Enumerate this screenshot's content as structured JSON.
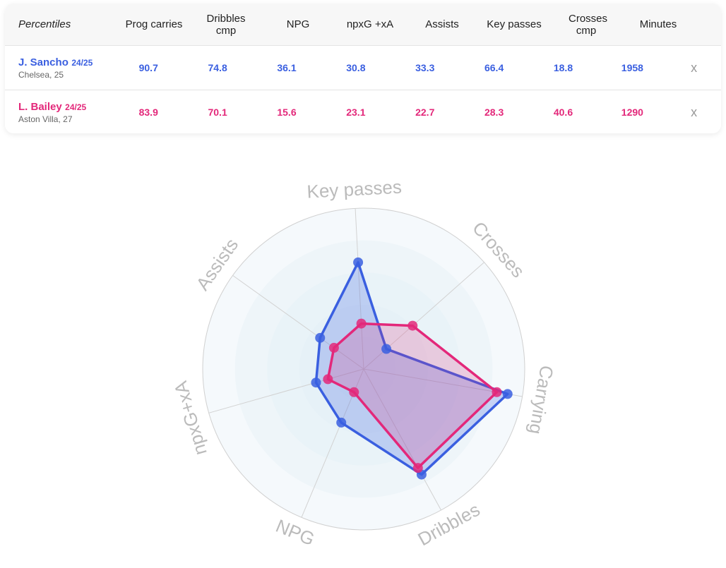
{
  "table": {
    "header_label": "Percentiles",
    "columns": [
      "Prog carries",
      "Dribbles cmp",
      "NPG",
      "npxG +xA",
      "Assists",
      "Key passes",
      "Crosses cmp",
      "Minutes"
    ],
    "remove_label": "x",
    "players": [
      {
        "name": "J. Sancho",
        "season": "24/25",
        "club": "Chelsea, 25",
        "values": [
          "90.7",
          "74.8",
          "36.1",
          "30.8",
          "33.3",
          "66.4",
          "18.8",
          "1958"
        ],
        "color": "#3a5fe0"
      },
      {
        "name": "L. Bailey",
        "season": "24/25",
        "club": "Aston Villa, 27",
        "values": [
          "83.9",
          "70.1",
          "15.6",
          "23.1",
          "22.7",
          "28.3",
          "40.6",
          "1290"
        ],
        "color": "#e3287a"
      }
    ]
  },
  "chart_data": {
    "type": "radar",
    "axes": [
      "Key passes",
      "Crosses",
      "Carrying",
      "Dribbles",
      "NPG",
      "npxG+xA",
      "Assists"
    ],
    "range": [
      0,
      100
    ],
    "series": [
      {
        "name": "J. Sancho",
        "color": "#3a5fe0",
        "values": [
          66.4,
          18.8,
          90.7,
          74.8,
          36.1,
          30.8,
          33.3
        ]
      },
      {
        "name": "L. Bailey",
        "color": "#e3287a",
        "values": [
          28.3,
          40.6,
          83.9,
          70.1,
          15.6,
          23.1,
          22.7
        ]
      }
    ]
  }
}
